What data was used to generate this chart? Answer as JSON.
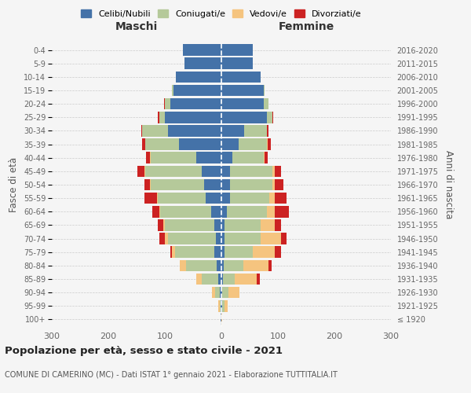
{
  "age_groups": [
    "100+",
    "95-99",
    "90-94",
    "85-89",
    "80-84",
    "75-79",
    "70-74",
    "65-69",
    "60-64",
    "55-59",
    "50-54",
    "45-49",
    "40-44",
    "35-39",
    "30-34",
    "25-29",
    "20-24",
    "15-19",
    "10-14",
    "5-9",
    "0-4"
  ],
  "birth_years": [
    "≤ 1920",
    "1921-1925",
    "1926-1930",
    "1931-1935",
    "1936-1940",
    "1941-1945",
    "1946-1950",
    "1951-1955",
    "1956-1960",
    "1961-1965",
    "1966-1970",
    "1971-1975",
    "1976-1980",
    "1981-1985",
    "1986-1990",
    "1991-1995",
    "1996-2000",
    "2001-2005",
    "2006-2010",
    "2011-2015",
    "2016-2020"
  ],
  "males": {
    "celibi": [
      1,
      1,
      3,
      5,
      8,
      12,
      10,
      12,
      18,
      28,
      30,
      35,
      45,
      75,
      95,
      100,
      90,
      85,
      80,
      65,
      68
    ],
    "coniugati": [
      0,
      2,
      8,
      30,
      55,
      70,
      85,
      88,
      90,
      85,
      95,
      100,
      80,
      60,
      45,
      10,
      10,
      2,
      0,
      0,
      0
    ],
    "vedovi": [
      0,
      2,
      5,
      10,
      10,
      5,
      5,
      3,
      2,
      1,
      1,
      1,
      1,
      0,
      0,
      0,
      0,
      0,
      0,
      0,
      0
    ],
    "divorziati": [
      0,
      0,
      0,
      0,
      0,
      3,
      10,
      10,
      12,
      22,
      10,
      12,
      8,
      5,
      2,
      2,
      1,
      0,
      0,
      0,
      0
    ]
  },
  "females": {
    "nubili": [
      0,
      1,
      2,
      3,
      4,
      5,
      5,
      5,
      10,
      15,
      15,
      15,
      20,
      30,
      40,
      80,
      75,
      75,
      70,
      55,
      55
    ],
    "coniugate": [
      0,
      5,
      10,
      20,
      35,
      50,
      65,
      65,
      70,
      70,
      75,
      75,
      55,
      50,
      40,
      10,
      8,
      2,
      0,
      0,
      0
    ],
    "vedove": [
      1,
      5,
      20,
      40,
      45,
      40,
      35,
      25,
      15,
      10,
      5,
      5,
      2,
      2,
      1,
      0,
      0,
      0,
      0,
      0,
      0
    ],
    "divorziate": [
      0,
      0,
      0,
      5,
      5,
      10,
      10,
      10,
      25,
      20,
      15,
      10,
      5,
      5,
      2,
      2,
      1,
      0,
      0,
      0,
      0
    ]
  },
  "colors": {
    "celibi": "#4472a8",
    "coniugati": "#b5c99a",
    "vedovi": "#f5c47f",
    "divorziati": "#cc2222"
  },
  "xlim": 300,
  "title": "Popolazione per età, sesso e stato civile - 2021",
  "subtitle": "COMUNE DI CAMERINO (MC) - Dati ISTAT 1° gennaio 2021 - Elaborazione TUTTITALIA.IT",
  "xlabel_left": "Maschi",
  "xlabel_right": "Femmine",
  "ylabel_left": "Fasce di età",
  "ylabel_right": "Anni di nascita",
  "legend_labels": [
    "Celibi/Nubili",
    "Coniugati/e",
    "Vedovi/e",
    "Divorziati/e"
  ],
  "background_color": "#f5f5f5"
}
